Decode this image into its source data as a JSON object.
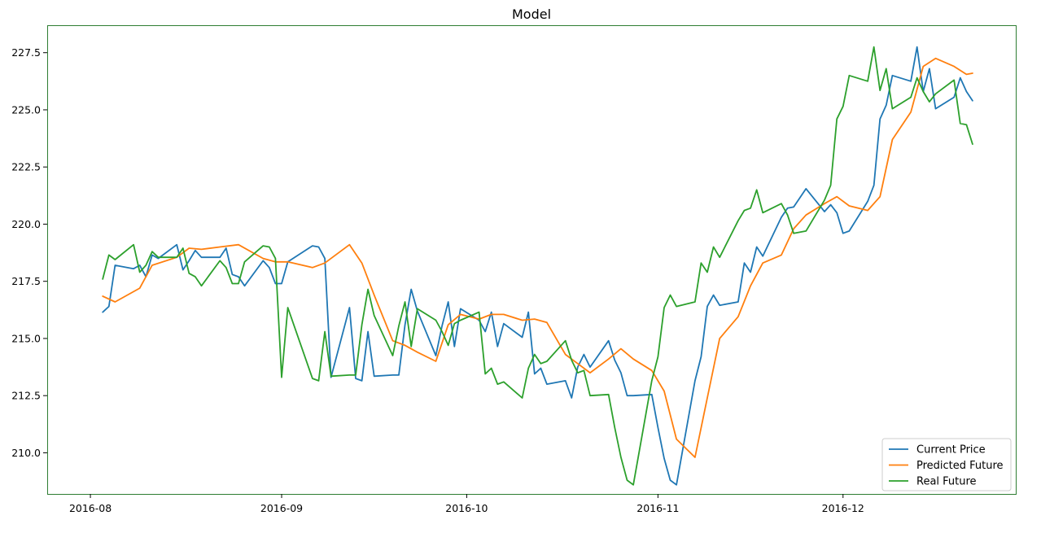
{
  "chart_data": {
    "type": "line",
    "title": "Model",
    "xlabel": "",
    "ylabel": "",
    "x_ticks": [
      {
        "date": "2016-08-01",
        "label": "2016-08"
      },
      {
        "date": "2016-09-01",
        "label": "2016-09"
      },
      {
        "date": "2016-10-01",
        "label": "2016-10"
      },
      {
        "date": "2016-11-01",
        "label": "2016-11"
      },
      {
        "date": "2016-12-01",
        "label": "2016-12"
      }
    ],
    "y_ticks": [
      210.0,
      212.5,
      215.0,
      217.5,
      220.0,
      222.5,
      225.0,
      227.5
    ],
    "y_tick_labels": [
      "210.0",
      "212.5",
      "215.0",
      "217.5",
      "220.0",
      "222.5",
      "225.0",
      "227.5"
    ],
    "xlim": [
      "2016-07-25",
      "2016-12-29"
    ],
    "ylim": [
      208.2,
      228.7
    ],
    "grid": false,
    "legend_position": "lower-right",
    "series": [
      {
        "name": "Current Price",
        "color": "#1f77b4",
        "points": [
          [
            "2016-08-03",
            216.15
          ],
          [
            "2016-08-04",
            216.4
          ],
          [
            "2016-08-05",
            218.2
          ],
          [
            "2016-08-08",
            218.05
          ],
          [
            "2016-08-09",
            218.2
          ],
          [
            "2016-08-10",
            217.7
          ],
          [
            "2016-08-11",
            218.65
          ],
          [
            "2016-08-12",
            218.5
          ],
          [
            "2016-08-15",
            219.1
          ],
          [
            "2016-08-16",
            218.0
          ],
          [
            "2016-08-17",
            218.4
          ],
          [
            "2016-08-18",
            218.85
          ],
          [
            "2016-08-19",
            218.55
          ],
          [
            "2016-08-22",
            218.55
          ],
          [
            "2016-08-23",
            218.95
          ],
          [
            "2016-08-24",
            217.8
          ],
          [
            "2016-08-25",
            217.7
          ],
          [
            "2016-08-26",
            217.3
          ],
          [
            "2016-08-29",
            218.4
          ],
          [
            "2016-08-30",
            218.1
          ],
          [
            "2016-08-31",
            217.4
          ],
          [
            "2016-09-01",
            217.4
          ],
          [
            "2016-09-02",
            218.35
          ],
          [
            "2016-09-06",
            219.05
          ],
          [
            "2016-09-07",
            219.0
          ],
          [
            "2016-09-08",
            218.5
          ],
          [
            "2016-09-09",
            213.3
          ],
          [
            "2016-09-12",
            216.35
          ],
          [
            "2016-09-13",
            213.25
          ],
          [
            "2016-09-14",
            213.15
          ],
          [
            "2016-09-15",
            215.3
          ],
          [
            "2016-09-16",
            213.35
          ],
          [
            "2016-09-19",
            213.4
          ],
          [
            "2016-09-20",
            213.4
          ],
          [
            "2016-09-21",
            215.6
          ],
          [
            "2016-09-22",
            217.15
          ],
          [
            "2016-09-23",
            216.2
          ],
          [
            "2016-09-26",
            214.25
          ],
          [
            "2016-09-27",
            215.55
          ],
          [
            "2016-09-28",
            216.6
          ],
          [
            "2016-09-29",
            214.65
          ],
          [
            "2016-09-30",
            216.3
          ],
          [
            "2016-10-03",
            215.8
          ],
          [
            "2016-10-04",
            215.3
          ],
          [
            "2016-10-05",
            216.15
          ],
          [
            "2016-10-06",
            214.65
          ],
          [
            "2016-10-07",
            215.65
          ],
          [
            "2016-10-10",
            215.05
          ],
          [
            "2016-10-11",
            216.15
          ],
          [
            "2016-10-12",
            213.45
          ],
          [
            "2016-10-13",
            213.7
          ],
          [
            "2016-10-14",
            213.0
          ],
          [
            "2016-10-17",
            213.15
          ],
          [
            "2016-10-18",
            212.4
          ],
          [
            "2016-10-19",
            213.75
          ],
          [
            "2016-10-20",
            214.3
          ],
          [
            "2016-10-21",
            213.75
          ],
          [
            "2016-10-24",
            214.9
          ],
          [
            "2016-10-25",
            214.05
          ],
          [
            "2016-10-26",
            213.5
          ],
          [
            "2016-10-27",
            212.5
          ],
          [
            "2016-10-28",
            212.5
          ],
          [
            "2016-10-31",
            212.55
          ],
          [
            "2016-11-01",
            211.1
          ],
          [
            "2016-11-02",
            209.75
          ],
          [
            "2016-11-03",
            208.8
          ],
          [
            "2016-11-04",
            208.6
          ],
          [
            "2016-11-07",
            213.15
          ],
          [
            "2016-11-08",
            214.2
          ],
          [
            "2016-11-09",
            216.4
          ],
          [
            "2016-11-10",
            216.9
          ],
          [
            "2016-11-11",
            216.45
          ],
          [
            "2016-11-14",
            216.6
          ],
          [
            "2016-11-15",
            218.3
          ],
          [
            "2016-11-16",
            217.9
          ],
          [
            "2016-11-17",
            219.0
          ],
          [
            "2016-11-18",
            218.6
          ],
          [
            "2016-11-21",
            220.3
          ],
          [
            "2016-11-22",
            220.7
          ],
          [
            "2016-11-23",
            220.75
          ],
          [
            "2016-11-25",
            221.55
          ],
          [
            "2016-11-28",
            220.55
          ],
          [
            "2016-11-29",
            220.85
          ],
          [
            "2016-11-30",
            220.5
          ],
          [
            "2016-12-01",
            219.6
          ],
          [
            "2016-12-02",
            219.7
          ],
          [
            "2016-12-05",
            221.0
          ],
          [
            "2016-12-06",
            221.7
          ],
          [
            "2016-12-07",
            224.6
          ],
          [
            "2016-12-08",
            225.2
          ],
          [
            "2016-12-09",
            226.5
          ],
          [
            "2016-12-12",
            226.25
          ],
          [
            "2016-12-13",
            227.75
          ],
          [
            "2016-12-14",
            225.8
          ],
          [
            "2016-12-15",
            226.8
          ],
          [
            "2016-12-16",
            225.05
          ],
          [
            "2016-12-19",
            225.55
          ],
          [
            "2016-12-20",
            226.4
          ],
          [
            "2016-12-21",
            225.8
          ],
          [
            "2016-12-22",
            225.4
          ]
        ]
      },
      {
        "name": "Predicted Future",
        "color": "#ff7f0e",
        "points": [
          [
            "2016-08-03",
            216.85
          ],
          [
            "2016-08-05",
            216.6
          ],
          [
            "2016-08-09",
            217.2
          ],
          [
            "2016-08-11",
            218.2
          ],
          [
            "2016-08-15",
            218.55
          ],
          [
            "2016-08-17",
            218.95
          ],
          [
            "2016-08-19",
            218.9
          ],
          [
            "2016-08-22",
            219.0
          ],
          [
            "2016-08-25",
            219.1
          ],
          [
            "2016-08-29",
            218.5
          ],
          [
            "2016-08-31",
            218.35
          ],
          [
            "2016-09-02",
            218.35
          ],
          [
            "2016-09-06",
            218.1
          ],
          [
            "2016-09-08",
            218.3
          ],
          [
            "2016-09-12",
            219.1
          ],
          [
            "2016-09-14",
            218.3
          ],
          [
            "2016-09-16",
            216.9
          ],
          [
            "2016-09-19",
            214.9
          ],
          [
            "2016-09-21",
            214.7
          ],
          [
            "2016-09-23",
            214.4
          ],
          [
            "2016-09-26",
            214.0
          ],
          [
            "2016-09-28",
            215.6
          ],
          [
            "2016-09-30",
            216.05
          ],
          [
            "2016-10-03",
            215.85
          ],
          [
            "2016-10-05",
            216.05
          ],
          [
            "2016-10-07",
            216.05
          ],
          [
            "2016-10-10",
            215.8
          ],
          [
            "2016-10-12",
            215.85
          ],
          [
            "2016-10-14",
            215.7
          ],
          [
            "2016-10-17",
            214.3
          ],
          [
            "2016-10-19",
            213.9
          ],
          [
            "2016-10-21",
            213.5
          ],
          [
            "2016-10-24",
            214.1
          ],
          [
            "2016-10-26",
            214.55
          ],
          [
            "2016-10-28",
            214.1
          ],
          [
            "2016-10-31",
            213.6
          ],
          [
            "2016-11-02",
            212.7
          ],
          [
            "2016-11-04",
            210.6
          ],
          [
            "2016-11-07",
            209.8
          ],
          [
            "2016-11-09",
            212.4
          ],
          [
            "2016-11-11",
            215.0
          ],
          [
            "2016-11-14",
            215.95
          ],
          [
            "2016-11-16",
            217.3
          ],
          [
            "2016-11-18",
            218.3
          ],
          [
            "2016-11-21",
            218.65
          ],
          [
            "2016-11-23",
            219.8
          ],
          [
            "2016-11-25",
            220.4
          ],
          [
            "2016-11-28",
            220.9
          ],
          [
            "2016-11-30",
            221.2
          ],
          [
            "2016-12-02",
            220.8
          ],
          [
            "2016-12-05",
            220.6
          ],
          [
            "2016-12-07",
            221.2
          ],
          [
            "2016-12-09",
            223.7
          ],
          [
            "2016-12-12",
            224.9
          ],
          [
            "2016-12-14",
            226.9
          ],
          [
            "2016-12-16",
            227.25
          ],
          [
            "2016-12-19",
            226.9
          ],
          [
            "2016-12-21",
            226.55
          ],
          [
            "2016-12-22",
            226.6
          ]
        ]
      },
      {
        "name": "Real Future",
        "color": "#2ca02c",
        "points": [
          [
            "2016-08-03",
            217.6
          ],
          [
            "2016-08-04",
            218.65
          ],
          [
            "2016-08-05",
            218.45
          ],
          [
            "2016-08-08",
            219.1
          ],
          [
            "2016-08-09",
            217.9
          ],
          [
            "2016-08-10",
            218.2
          ],
          [
            "2016-08-11",
            218.8
          ],
          [
            "2016-08-12",
            218.55
          ],
          [
            "2016-08-15",
            218.55
          ],
          [
            "2016-08-16",
            218.95
          ],
          [
            "2016-08-17",
            217.85
          ],
          [
            "2016-08-18",
            217.7
          ],
          [
            "2016-08-19",
            217.3
          ],
          [
            "2016-08-22",
            218.4
          ],
          [
            "2016-08-23",
            218.1
          ],
          [
            "2016-08-24",
            217.4
          ],
          [
            "2016-08-25",
            217.4
          ],
          [
            "2016-08-26",
            218.35
          ],
          [
            "2016-08-29",
            219.05
          ],
          [
            "2016-08-30",
            219.0
          ],
          [
            "2016-08-31",
            218.5
          ],
          [
            "2016-09-01",
            213.3
          ],
          [
            "2016-09-02",
            216.35
          ],
          [
            "2016-09-06",
            213.25
          ],
          [
            "2016-09-07",
            213.15
          ],
          [
            "2016-09-08",
            215.3
          ],
          [
            "2016-09-09",
            213.35
          ],
          [
            "2016-09-12",
            213.4
          ],
          [
            "2016-09-13",
            213.4
          ],
          [
            "2016-09-14",
            215.6
          ],
          [
            "2016-09-15",
            217.15
          ],
          [
            "2016-09-16",
            216.0
          ],
          [
            "2016-09-19",
            214.25
          ],
          [
            "2016-09-20",
            215.55
          ],
          [
            "2016-09-21",
            216.6
          ],
          [
            "2016-09-22",
            214.65
          ],
          [
            "2016-09-23",
            216.3
          ],
          [
            "2016-09-26",
            215.8
          ],
          [
            "2016-09-27",
            215.3
          ],
          [
            "2016-09-28",
            214.7
          ],
          [
            "2016-09-29",
            215.65
          ],
          [
            "2016-09-30",
            215.8
          ],
          [
            "2016-10-03",
            216.15
          ],
          [
            "2016-10-04",
            213.45
          ],
          [
            "2016-10-05",
            213.7
          ],
          [
            "2016-10-06",
            213.0
          ],
          [
            "2016-10-07",
            213.1
          ],
          [
            "2016-10-10",
            212.4
          ],
          [
            "2016-10-11",
            213.7
          ],
          [
            "2016-10-12",
            214.3
          ],
          [
            "2016-10-13",
            213.9
          ],
          [
            "2016-10-14",
            214.0
          ],
          [
            "2016-10-17",
            214.9
          ],
          [
            "2016-10-18",
            214.05
          ],
          [
            "2016-10-19",
            213.5
          ],
          [
            "2016-10-20",
            213.6
          ],
          [
            "2016-10-21",
            212.5
          ],
          [
            "2016-10-24",
            212.55
          ],
          [
            "2016-10-25",
            211.1
          ],
          [
            "2016-10-26",
            209.8
          ],
          [
            "2016-10-27",
            208.8
          ],
          [
            "2016-10-28",
            208.6
          ],
          [
            "2016-10-31",
            213.15
          ],
          [
            "2016-11-01",
            214.2
          ],
          [
            "2016-11-02",
            216.35
          ],
          [
            "2016-11-03",
            216.9
          ],
          [
            "2016-11-04",
            216.4
          ],
          [
            "2016-11-07",
            216.6
          ],
          [
            "2016-11-08",
            218.3
          ],
          [
            "2016-11-09",
            217.9
          ],
          [
            "2016-11-10",
            219.0
          ],
          [
            "2016-11-11",
            218.55
          ],
          [
            "2016-11-14",
            220.15
          ],
          [
            "2016-11-15",
            220.6
          ],
          [
            "2016-11-16",
            220.7
          ],
          [
            "2016-11-17",
            221.5
          ],
          [
            "2016-11-18",
            220.5
          ],
          [
            "2016-11-21",
            220.9
          ],
          [
            "2016-11-22",
            220.4
          ],
          [
            "2016-11-23",
            219.6
          ],
          [
            "2016-11-25",
            219.7
          ],
          [
            "2016-11-28",
            221.05
          ],
          [
            "2016-11-29",
            221.7
          ],
          [
            "2016-11-30",
            224.6
          ],
          [
            "2016-12-01",
            225.15
          ],
          [
            "2016-12-02",
            226.5
          ],
          [
            "2016-12-05",
            226.25
          ],
          [
            "2016-12-06",
            227.75
          ],
          [
            "2016-12-07",
            225.85
          ],
          [
            "2016-12-08",
            226.8
          ],
          [
            "2016-12-09",
            225.05
          ],
          [
            "2016-12-12",
            225.55
          ],
          [
            "2016-12-13",
            226.4
          ],
          [
            "2016-12-14",
            225.8
          ],
          [
            "2016-12-15",
            225.35
          ],
          [
            "2016-12-16",
            225.7
          ],
          [
            "2016-12-19",
            226.3
          ],
          [
            "2016-12-20",
            224.4
          ],
          [
            "2016-12-21",
            224.35
          ],
          [
            "2016-12-22",
            223.5
          ]
        ]
      }
    ]
  }
}
